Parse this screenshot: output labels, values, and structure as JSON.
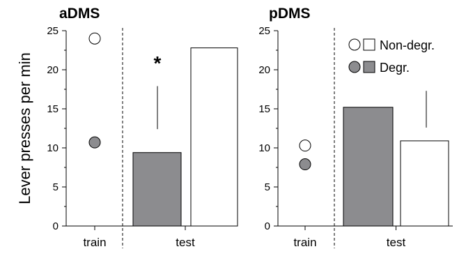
{
  "colors": {
    "degraded": "#8c8c8f",
    "non_degraded": "#ffffff",
    "stroke": "#000000"
  },
  "chart_data": [
    {
      "type": "bar",
      "title": "aDMS",
      "ylabel": "Lever presses per min",
      "ylim": [
        0,
        25
      ],
      "yticks": [
        0,
        5,
        10,
        15,
        20,
        25
      ],
      "groups": [
        "train",
        "test"
      ],
      "train_points": [
        {
          "series": "Non-degr.",
          "value": 24
        },
        {
          "series": "Degr.",
          "value": 10.7
        }
      ],
      "test_bars": [
        {
          "series": "Degr.",
          "value": 9.4
        },
        {
          "series": "Non-degr.",
          "value": 22.8
        }
      ],
      "error_line": [
        12.4,
        17.9
      ],
      "significance": "*"
    },
    {
      "type": "bar",
      "title": "pDMS",
      "ylim": [
        0,
        25
      ],
      "yticks": [
        0,
        5,
        10,
        15,
        20,
        25
      ],
      "groups": [
        "train",
        "test"
      ],
      "train_points": [
        {
          "series": "Non-degr.",
          "value": 10.3
        },
        {
          "series": "Degr.",
          "value": 7.9
        }
      ],
      "test_bars": [
        {
          "series": "Degr.",
          "value": 15.2
        },
        {
          "series": "Non-degr.",
          "value": 10.9
        }
      ],
      "error_line": [
        12.6,
        17.3
      ]
    }
  ],
  "legend": [
    {
      "label": "Non-degr.",
      "series": "Non-degr."
    },
    {
      "label": "Degr.",
      "series": "Degr."
    }
  ]
}
